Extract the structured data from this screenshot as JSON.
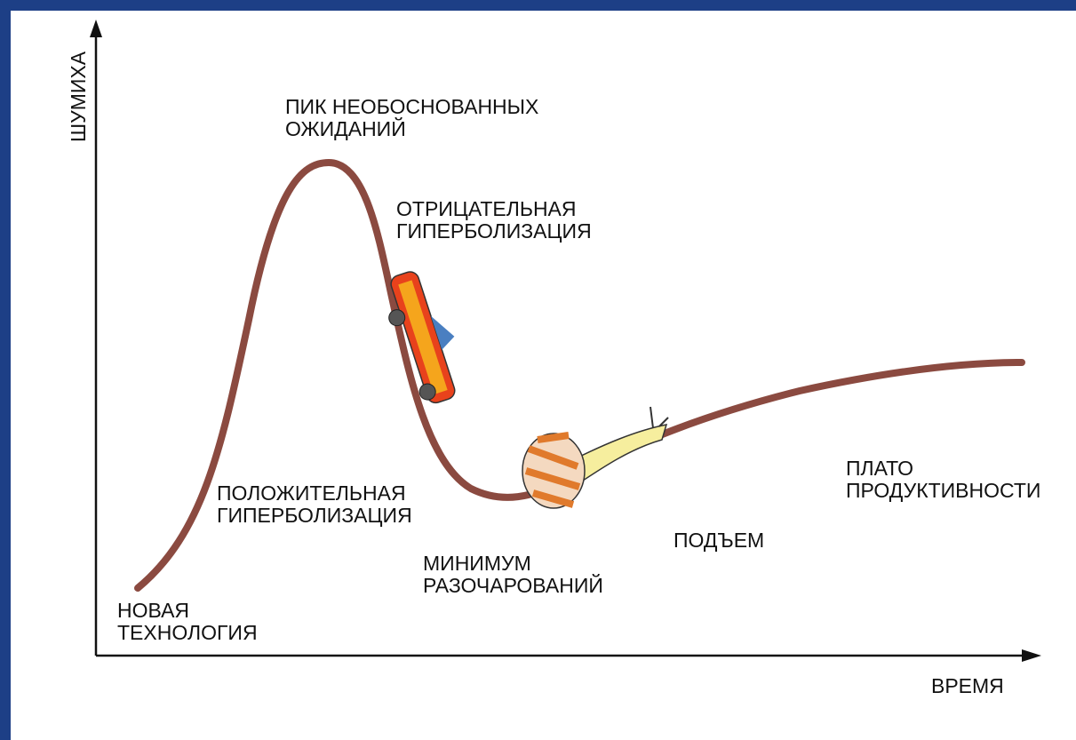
{
  "axes": {
    "y_label": "ШУМИХА",
    "x_label": "ВРЕМЯ"
  },
  "phases": [
    {
      "lines": [
        "НОВАЯ",
        "ТЕХНОЛОГИЯ"
      ]
    },
    {
      "lines": [
        "ПОЛОЖИТЕЛЬНАЯ",
        "ГИПЕРБОЛИЗАЦИЯ"
      ]
    },
    {
      "lines": [
        "ПИК НЕОБОСНОВАННЫХ",
        "ОЖИДАНИЙ"
      ]
    },
    {
      "lines": [
        "ОТРИЦАТЕЛЬНАЯ",
        "ГИПЕРБОЛИЗАЦИЯ"
      ]
    },
    {
      "lines": [
        "МИНИМУМ",
        "РАЗОЧАРОВАНИЙ"
      ]
    },
    {
      "lines": [
        "ПОДЪЕМ"
      ]
    },
    {
      "lines": [
        "ПЛАТО",
        "ПРОДУКТИВНОСТИ"
      ]
    }
  ]
}
